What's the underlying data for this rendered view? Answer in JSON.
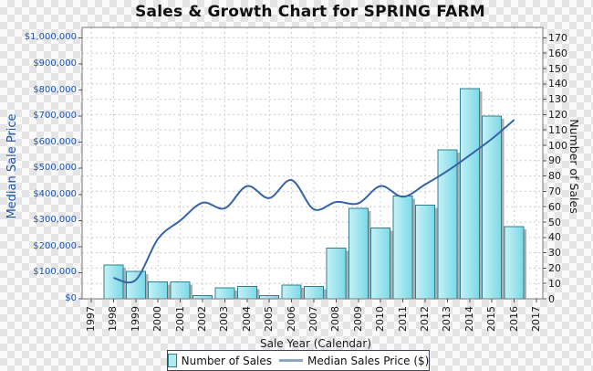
{
  "title": "Sales & Growth Chart for SPRING FARM",
  "left_axis": {
    "title": "Median Sale Price",
    "tick_labels": [
      "$0",
      "$100,000",
      "$200,000",
      "$300,000",
      "$400,000",
      "$500,000",
      "$600,000",
      "$700,000",
      "$800,000",
      "$900,000",
      "$1,000,000"
    ],
    "min": 0,
    "max": 1000000
  },
  "right_axis": {
    "title": "Number of Sales",
    "tick_labels": [
      "0",
      "10",
      "20",
      "30",
      "40",
      "50",
      "60",
      "70",
      "80",
      "90",
      "100",
      "110",
      "120",
      "130",
      "140",
      "150",
      "160",
      "170"
    ],
    "min": 0,
    "max": 170
  },
  "x_axis": {
    "title": "Sale Year (Calendar)"
  },
  "legend": {
    "bar_label": "Number of Sales",
    "line_label": "Median Sales Price ($)"
  },
  "colors": {
    "bar_fill_light": "#c6f1f5",
    "bar_fill_dark": "#7bd9e7",
    "bar_border": "#2f7f91",
    "bar_shadow": "#9b9b9b",
    "line": "#3464a8",
    "grid": "#cccccc",
    "plot_border": "#7a7a7a",
    "tick": "#555555",
    "axis_label_blue": "#1f55a8",
    "text": "#1a1a1a"
  },
  "chart_data": {
    "type": "bar+line",
    "title": "Sales & Growth Chart for SPRING FARM",
    "xlabel": "Sale Year (Calendar)",
    "ylabel_left": "Median Sale Price",
    "ylabel_right": "Number of Sales",
    "left_ylim": [
      0,
      1000000
    ],
    "right_ylim": [
      0,
      170
    ],
    "grid": true,
    "legend_position": "bottom",
    "categories": [
      "1997",
      "1998",
      "1999",
      "2000",
      "2001",
      "2002",
      "2003",
      "2004",
      "2005",
      "2006",
      "2007",
      "2008",
      "2009",
      "2010",
      "2011",
      "2012",
      "2013",
      "2014",
      "2015",
      "2016",
      "2017"
    ],
    "series": [
      {
        "name": "Number of Sales",
        "type": "bar",
        "axis": "right",
        "values": [
          null,
          22,
          18,
          11,
          11,
          2,
          7,
          8,
          2,
          9,
          8,
          33,
          59,
          46,
          67,
          61,
          97,
          137,
          119,
          47,
          null
        ]
      },
      {
        "name": "Median Sales Price ($)",
        "type": "line",
        "axis": "left",
        "values": [
          null,
          80000,
          72000,
          230000,
          300000,
          368000,
          347000,
          432000,
          386000,
          455000,
          343000,
          371000,
          366000,
          432000,
          391000,
          438000,
          490000,
          550000,
          613000,
          686000,
          null
        ]
      }
    ]
  }
}
